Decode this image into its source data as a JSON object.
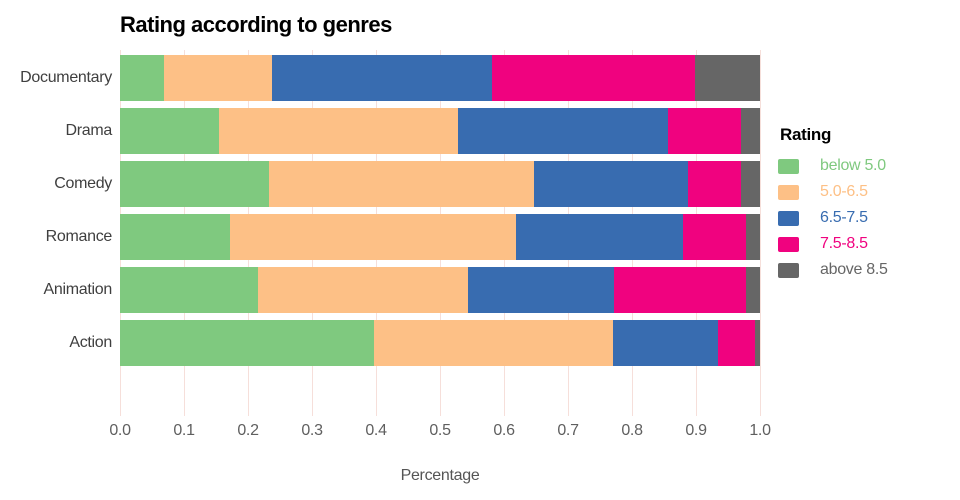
{
  "chart_data": {
    "type": "bar",
    "orientation": "horizontal_stacked",
    "title": "Rating according to genres",
    "xlabel": "Percentage",
    "ylabel": "",
    "legend_title": "Rating",
    "legend_position": "right",
    "grid": "vertical",
    "grid_color": "#f6dfda",
    "xlim": [
      0,
      1
    ],
    "x_ticks": [
      "0.0",
      "0.1",
      "0.2",
      "0.3",
      "0.4",
      "0.5",
      "0.6",
      "0.7",
      "0.8",
      "0.9",
      "1.0"
    ],
    "categories": [
      "Documentary",
      "Drama",
      "Comedy",
      "Romance",
      "Animation",
      "Action"
    ],
    "series": [
      {
        "name": "below 5.0",
        "color": "#7fc97f",
        "values": [
          0.068,
          0.155,
          0.233,
          0.172,
          0.215,
          0.397
        ]
      },
      {
        "name": "5.0-6.5",
        "color": "#fdc086",
        "values": [
          0.169,
          0.373,
          0.414,
          0.447,
          0.329,
          0.373
        ]
      },
      {
        "name": "6.5-7.5",
        "color": "#386cb0",
        "values": [
          0.345,
          0.328,
          0.24,
          0.26,
          0.228,
          0.164
        ]
      },
      {
        "name": "7.5-8.5",
        "color": "#f0027f",
        "values": [
          0.316,
          0.115,
          0.083,
          0.099,
          0.206,
          0.058
        ]
      },
      {
        "name": "above 8.5",
        "color": "#666666",
        "values": [
          0.102,
          0.029,
          0.03,
          0.022,
          0.022,
          0.008
        ]
      }
    ]
  }
}
